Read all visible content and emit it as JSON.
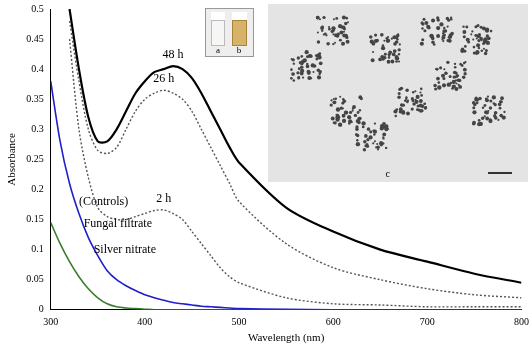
{
  "chart_data": {
    "type": "line",
    "x_label": "Wavelength (nm)",
    "y_label": "Absorbance",
    "x": [
      300,
      310,
      320,
      330,
      340,
      350,
      360,
      370,
      380,
      390,
      400,
      410,
      420,
      430,
      440,
      450,
      460,
      470,
      480,
      490,
      500,
      550,
      600,
      650,
      700,
      750,
      800
    ],
    "series": [
      {
        "name": "48 h",
        "color": "#000000",
        "line_style": "solid",
        "values": [
          null,
          null,
          0.5,
          0.4,
          0.32,
          0.28,
          0.28,
          0.3,
          0.33,
          0.36,
          0.38,
          0.395,
          0.4,
          0.405,
          0.4,
          0.385,
          0.36,
          0.33,
          0.3,
          0.27,
          0.245,
          0.17,
          0.13,
          0.1,
          0.08,
          0.06,
          0.045
        ]
      },
      {
        "name": "26 h",
        "color": "#555555",
        "line_style": "dotted",
        "values": [
          null,
          null,
          0.48,
          0.38,
          0.3,
          0.265,
          0.26,
          0.27,
          0.3,
          0.33,
          0.35,
          0.36,
          0.365,
          0.36,
          0.35,
          0.33,
          0.3,
          0.27,
          0.24,
          0.21,
          0.18,
          0.11,
          0.07,
          0.05,
          0.035,
          0.025,
          0.02
        ]
      },
      {
        "name": "2 h",
        "color": "#555555",
        "line_style": "dotted",
        "values": [
          null,
          null,
          0.45,
          0.3,
          0.22,
          0.17,
          0.155,
          0.15,
          0.15,
          0.155,
          0.16,
          0.165,
          0.166,
          0.16,
          0.15,
          0.13,
          0.11,
          0.09,
          0.07,
          0.055,
          0.045,
          0.02,
          0.01,
          0.008,
          0.005,
          0.005,
          0.005
        ]
      },
      {
        "name": "Fungal filtrate",
        "color": "#1f1fcc",
        "line_style": "solid",
        "values": [
          0.38,
          0.28,
          0.21,
          0.16,
          0.12,
          0.09,
          0.065,
          0.05,
          0.04,
          0.032,
          0.025,
          0.02,
          0.016,
          0.012,
          0.01,
          0.008,
          0.006,
          0.005,
          0.004,
          0.003,
          0.002,
          0.001,
          0,
          0,
          0,
          0,
          0
        ]
      },
      {
        "name": "Silver nitrate",
        "color": "#3a7d2c",
        "line_style": "solid",
        "values": [
          0.145,
          0.11,
          0.08,
          0.055,
          0.035,
          0.02,
          0.01,
          0.005,
          0.003,
          0.002,
          0.001,
          0,
          0,
          0,
          0,
          0,
          0,
          0,
          0,
          0,
          0,
          0,
          0,
          0,
          0,
          0,
          0
        ]
      }
    ],
    "annotations": [
      "(Controls)"
    ],
    "inset_labels": [
      "a",
      "b",
      "c"
    ],
    "xlim": [
      300,
      800
    ],
    "xticks": [
      300,
      400,
      500,
      600,
      700,
      800
    ],
    "ylim": [
      0,
      0.5
    ],
    "yticks": [
      0,
      0.05,
      0.1,
      0.15,
      0.2,
      0.25,
      0.3,
      0.35,
      0.4,
      0.45,
      0.5
    ],
    "grid": false,
    "legend": "none"
  }
}
